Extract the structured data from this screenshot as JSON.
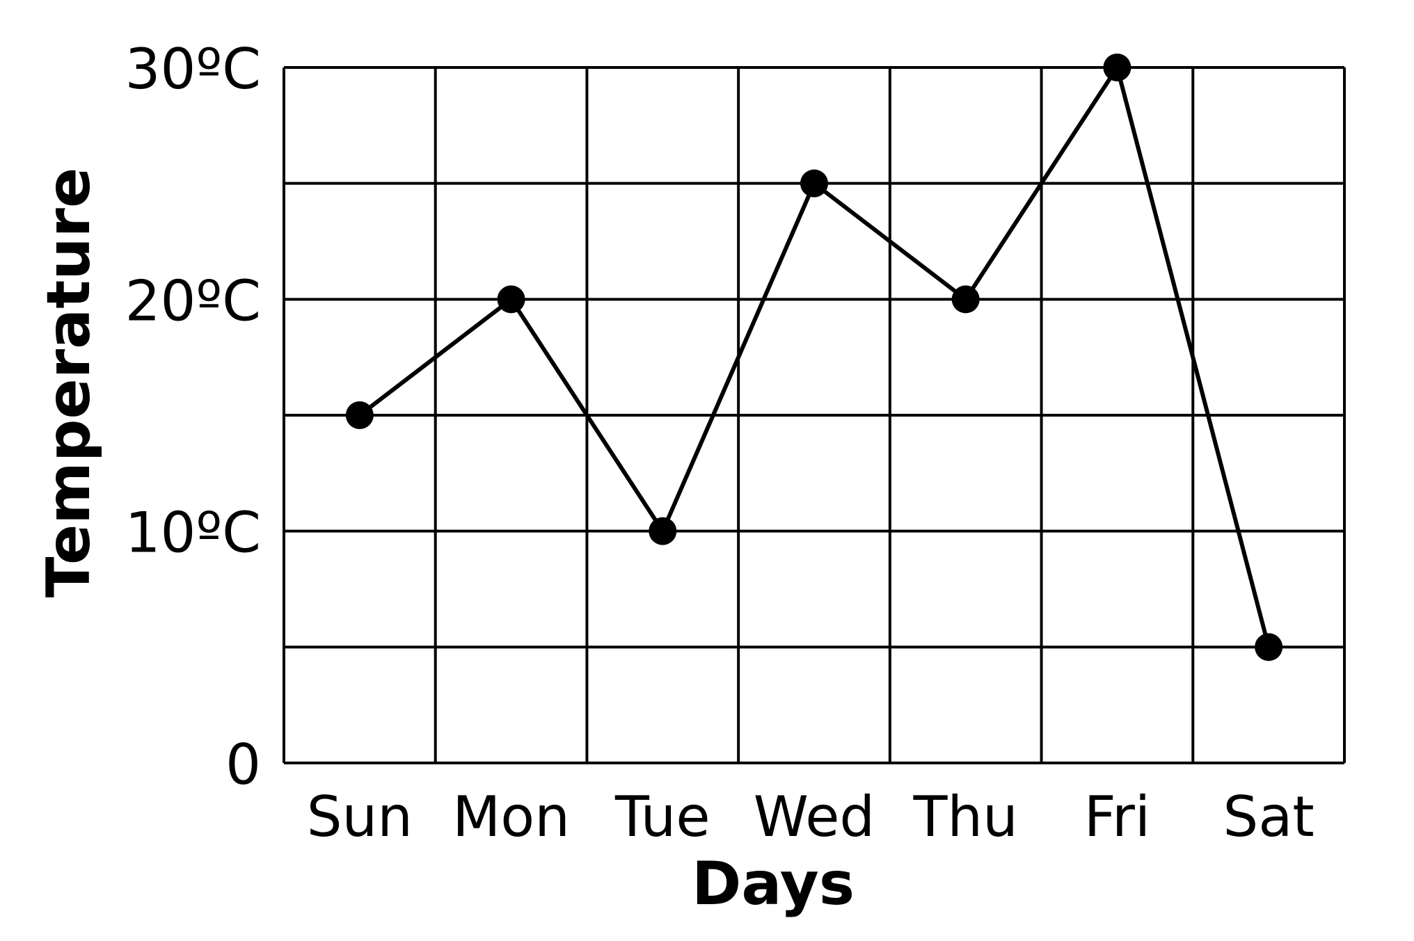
{
  "chart_data": {
    "type": "line",
    "title": "",
    "xlabel": "Days",
    "ylabel": "Temperature",
    "categories": [
      "Sun",
      "Mon",
      "Tue",
      "Wed",
      "Thu",
      "Fri",
      "Sat"
    ],
    "series": [
      {
        "values": [
          15,
          20,
          10,
          25,
          20,
          30,
          5
        ]
      }
    ],
    "ylim": [
      0,
      30
    ],
    "yticks": [
      {
        "value": 0,
        "label": "0"
      },
      {
        "value": 10,
        "label": "10ºC"
      },
      {
        "value": 20,
        "label": "20ºC"
      },
      {
        "value": 30,
        "label": "30ºC"
      }
    ],
    "grid": true,
    "line_color": "#000000",
    "marker_color": "#000000"
  }
}
